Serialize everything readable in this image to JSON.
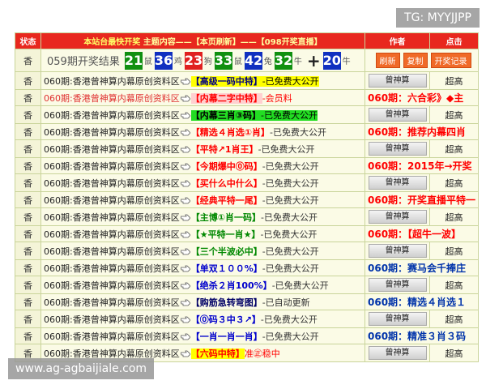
{
  "watermark_top": "TG: MYYJJPP",
  "watermark_bottom": "www.ag-agbaijiale.com",
  "header": {
    "status": "状态",
    "title_a": "本站台最快开奖",
    "title_b": "主题内容——【本页刷新】——【098开奖直播】",
    "author": "作者",
    "clicks": "点击"
  },
  "result": {
    "status": "香",
    "label": "059期开奖结果",
    "balls": [
      {
        "num": "21",
        "zodiac": "鼠",
        "color": "#109010"
      },
      {
        "num": "36",
        "zodiac": "鸡",
        "color": "#1030c0"
      },
      {
        "num": "23",
        "zodiac": "狗",
        "color": "#e02020"
      },
      {
        "num": "33",
        "zodiac": "鼠",
        "color": "#109010"
      },
      {
        "num": "42",
        "zodiac": "兔",
        "color": "#1030c0"
      },
      {
        "num": "32",
        "zodiac": "牛",
        "color": "#109010"
      }
    ],
    "plus": "+",
    "special": {
      "num": "20",
      "zodiac": "牛",
      "color": "#1030c0"
    },
    "buttons": [
      "刷新",
      "复制",
      "开奖记录"
    ]
  },
  "rows": [
    {
      "status": "香",
      "issue": "060期:香港曾神算内幕原创资料区",
      "tag": "【高级一码中特】",
      "tag_color": "#000080",
      "tag_bg": "#ffff00",
      "suffix": "-已免费大公开",
      "suffix_color": "#000000",
      "suffix_bg": "#ffff00",
      "author": "曾神算",
      "clicks": "超高"
    },
    {
      "status": "香",
      "issue": "060期:香港曾神算内幕原创资料区",
      "issue_color": "#e03030",
      "tag": "【内幕二字中特】",
      "tag_color": "#ff0000",
      "tag_bg": "#ffd0d0",
      "suffix": "-会员料",
      "suffix_color": "#ff0000",
      "side": "060期：六合彩》◆主",
      "side_color": "#ff0000"
    },
    {
      "status": "香",
      "issue": "060期:香港曾神算内幕原创资料区",
      "tag": "【内幕三肖③码】",
      "tag_color": "#000000",
      "tag_bg": "#22dd22",
      "suffix": "-已免费大公开",
      "suffix_color": "#000000",
      "suffix_bg": "#22dd22",
      "author": "曾神算",
      "clicks": "超高"
    },
    {
      "status": "香",
      "issue": "060期:香港曾神算内幕原创资料区",
      "tag": "【精选４肖选①肖】",
      "tag_color": "#ff0000",
      "suffix": "-已免费大公开",
      "suffix_color": "#333333",
      "side": "060期：推荐内幕四肖",
      "side_color": "#ff0000"
    },
    {
      "status": "香",
      "issue": "060期:香港曾神算内幕原创资料区",
      "tag": "【平特↗1肖王】",
      "tag_color": "#ff0000",
      "suffix": "-已免费大公开",
      "suffix_color": "#333333",
      "author": "曾神算",
      "clicks": "超高"
    },
    {
      "status": "香",
      "issue": "060期:香港曾神算内幕原创资料区",
      "tag": "【今期爆中⓪码】",
      "tag_color": "#ff0000",
      "suffix": "-已免费大公开",
      "suffix_color": "#333333",
      "side": "060期：2015年→开奖",
      "side_color": "#ff0000"
    },
    {
      "status": "香",
      "issue": "060期:香港曾神算内幕原创资料区",
      "tag": "【买什么中什么】",
      "tag_color": "#ff0000",
      "suffix": "-已免费大公开",
      "suffix_color": "#333333",
      "author": "曾神算",
      "clicks": "超高"
    },
    {
      "status": "香",
      "issue": "060期:香港曾神算内幕原创资料区",
      "tag": "【经典平特一尾】",
      "tag_color": "#ff0000",
      "suffix": "-已免费大公开",
      "suffix_color": "#333333",
      "side": "060期：开奖直播平特一",
      "side_color": "#ff0000"
    },
    {
      "status": "香",
      "issue": "060期:香港曾神算内幕原创资料区",
      "tag": "【主博①肖一码】",
      "tag_color": "#008800",
      "suffix": "-已免费大公开",
      "suffix_color": "#333333",
      "author": "曾神算",
      "clicks": "超高"
    },
    {
      "status": "香",
      "issue": "060期:香港曾神算内幕原创资料区",
      "tag": "【★平特一肖★】",
      "tag_color": "#008800",
      "suffix": "-已免费大公开",
      "suffix_color": "#333333",
      "side": "060期：【超牛一波】",
      "side_color": "#ff0000"
    },
    {
      "status": "香",
      "issue": "060期:香港曾神算内幕原创资料区",
      "tag": "【三个半波必中】",
      "tag_color": "#008800",
      "suffix": "-已免费大公开",
      "suffix_color": "#333333",
      "author": "曾神算",
      "clicks": "超高"
    },
    {
      "status": "香",
      "issue": "060期:香港曾神算内幕原创资料区",
      "tag": "【单双１００%】",
      "tag_color": "#0000cc",
      "suffix": "-已免费大公开",
      "suffix_color": "#333333",
      "side": "060期：赛马会千捧庄",
      "side_color": "#0033aa"
    },
    {
      "status": "香",
      "issue": "060期:香港曾神算内幕原创资料区",
      "tag": "【绝杀２肖100%】",
      "tag_color": "#0000cc",
      "suffix": "-已免费大公开",
      "suffix_color": "#333333",
      "author": "曾神算",
      "clicks": "超高"
    },
    {
      "status": "香",
      "issue": "060期:香港曾神算内幕原创资料区",
      "tag": "【购筋急转弯图】",
      "tag_color": "#000066",
      "suffix": "-已自动更新",
      "suffix_color": "#333333",
      "side": "060期：精选４肖选１",
      "side_color": "#0033aa"
    },
    {
      "status": "香",
      "issue": "060期:香港曾神算内幕原创资料区",
      "tag": "【⓪码３中３↗】",
      "tag_color": "#0000cc",
      "suffix": "-已免费大公开",
      "suffix_color": "#333333",
      "author": "曾神算",
      "clicks": "超高"
    },
    {
      "status": "香",
      "issue": "060期:香港曾神算内幕原创资料区",
      "tag": "【一肖一肖一肖】",
      "tag_color": "#0000cc",
      "suffix": "-已免费大公开",
      "suffix_color": "#333333",
      "side": "060期：精准３肖３码",
      "side_color": "#0033aa"
    },
    {
      "status": "香",
      "issue": "060期:香港曾神算内幕原创资料区",
      "tag": "【六码中特】",
      "tag_color": "#ff0000",
      "tag_bg": "#ffff00",
      "suffix": "准㊣稳中",
      "suffix_color": "#ff0000",
      "author": "曾神算",
      "clicks": "超高"
    }
  ]
}
